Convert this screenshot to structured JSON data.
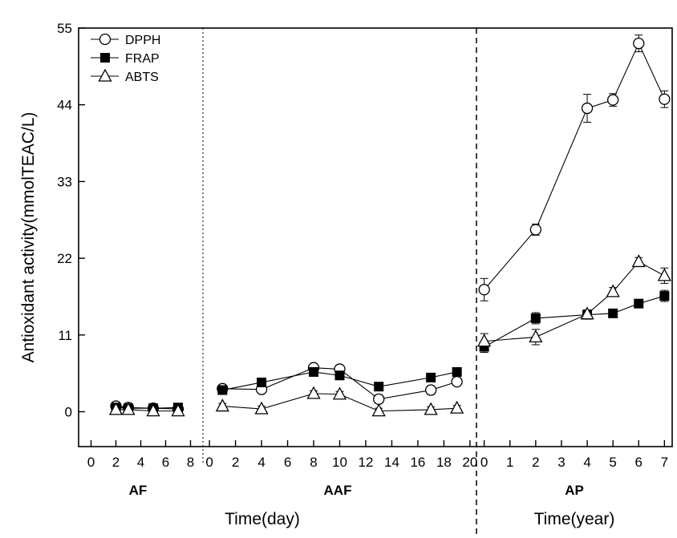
{
  "chart_data": {
    "type": "line",
    "ylabel": "Antioxidant activity(mmolTEAC/L)",
    "ylim": [
      -5,
      55
    ],
    "yticks": [
      0,
      11,
      22,
      33,
      44,
      55
    ],
    "legend": {
      "position": "top-left",
      "entries": [
        "DPPH",
        "FRAP",
        "ABTS"
      ]
    },
    "xlabel_days": "Time(day)",
    "xlabel_years": "Time(year)",
    "panels": [
      {
        "label": "AF",
        "xlim": [
          -1,
          9
        ],
        "xticks": [
          0,
          2,
          4,
          6,
          8
        ],
        "series": [
          {
            "name": "DPPH",
            "marker": "circle-open",
            "x": [
              2,
              3,
              5,
              7
            ],
            "y": [
              0.8,
              0.6,
              0.5,
              0.4
            ],
            "err": [
              0.2,
              0.2,
              0.2,
              0.2
            ]
          },
          {
            "name": "FRAP",
            "marker": "square-filled",
            "x": [
              2,
              3,
              5,
              7
            ],
            "y": [
              0.6,
              0.5,
              0.5,
              0.6
            ],
            "err": [
              0.2,
              0.2,
              0.2,
              0.2
            ]
          },
          {
            "name": "ABTS",
            "marker": "triangle-open",
            "x": [
              2,
              3,
              5,
              7
            ],
            "y": [
              0.3,
              0.3,
              0.1,
              0.1
            ],
            "err": [
              0.2,
              0.2,
              0.2,
              0.2
            ]
          }
        ]
      },
      {
        "label": "AAF",
        "xlim": [
          -0.5,
          20.5
        ],
        "xticks": [
          0,
          2,
          4,
          6,
          8,
          10,
          12,
          14,
          16,
          18,
          20
        ],
        "series": [
          {
            "name": "DPPH",
            "marker": "circle-open",
            "x": [
              1,
              4,
              8,
              10,
              13,
              17,
              19
            ],
            "y": [
              3.3,
              3.2,
              6.3,
              6.1,
              1.8,
              3.1,
              4.3
            ],
            "err": [
              0.4,
              0.4,
              0.4,
              0.4,
              0.6,
              0.6,
              0.4
            ]
          },
          {
            "name": "FRAP",
            "marker": "square-filled",
            "x": [
              1,
              4,
              8,
              10,
              13,
              17,
              19
            ],
            "y": [
              3.1,
              4.2,
              5.7,
              5.2,
              3.6,
              4.9,
              5.7
            ],
            "err": [
              0.3,
              0.3,
              0.3,
              0.3,
              0.3,
              0.3,
              0.3
            ]
          },
          {
            "name": "ABTS",
            "marker": "triangle-open",
            "x": [
              1,
              4,
              8,
              10,
              13,
              17,
              19
            ],
            "y": [
              0.8,
              0.4,
              2.6,
              2.5,
              0.1,
              0.3,
              0.5
            ],
            "err": [
              0.4,
              0.4,
              0.4,
              0.4,
              0.4,
              0.4,
              0.4
            ]
          }
        ]
      },
      {
        "label": "AP",
        "xlim": [
          -0.3,
          7.3
        ],
        "xticks": [
          0,
          1,
          2,
          3,
          4,
          5,
          6,
          7
        ],
        "series": [
          {
            "name": "DPPH",
            "marker": "circle-open",
            "x": [
              0,
              2,
              4,
              5,
              6,
              7
            ],
            "y": [
              17.5,
              26.1,
              43.5,
              44.7,
              52.8,
              44.8
            ],
            "err": [
              1.6,
              0.8,
              2.0,
              0.9,
              1.2,
              1.2
            ]
          },
          {
            "name": "FRAP",
            "marker": "square-filled",
            "x": [
              0,
              2,
              4,
              5,
              6,
              7
            ],
            "y": [
              9.3,
              13.4,
              13.9,
              14.1,
              15.5,
              16.6
            ],
            "err": [
              0.8,
              0.8,
              0.5,
              0.4,
              0.4,
              0.8
            ]
          },
          {
            "name": "ABTS",
            "marker": "triangle-open",
            "x": [
              0,
              2,
              4,
              5,
              6,
              7
            ],
            "y": [
              10.1,
              10.7,
              14.0,
              17.2,
              21.5,
              19.5
            ],
            "err": [
              1.1,
              1.1,
              0.6,
              0.6,
              0.6,
              1.1
            ]
          }
        ]
      }
    ]
  }
}
